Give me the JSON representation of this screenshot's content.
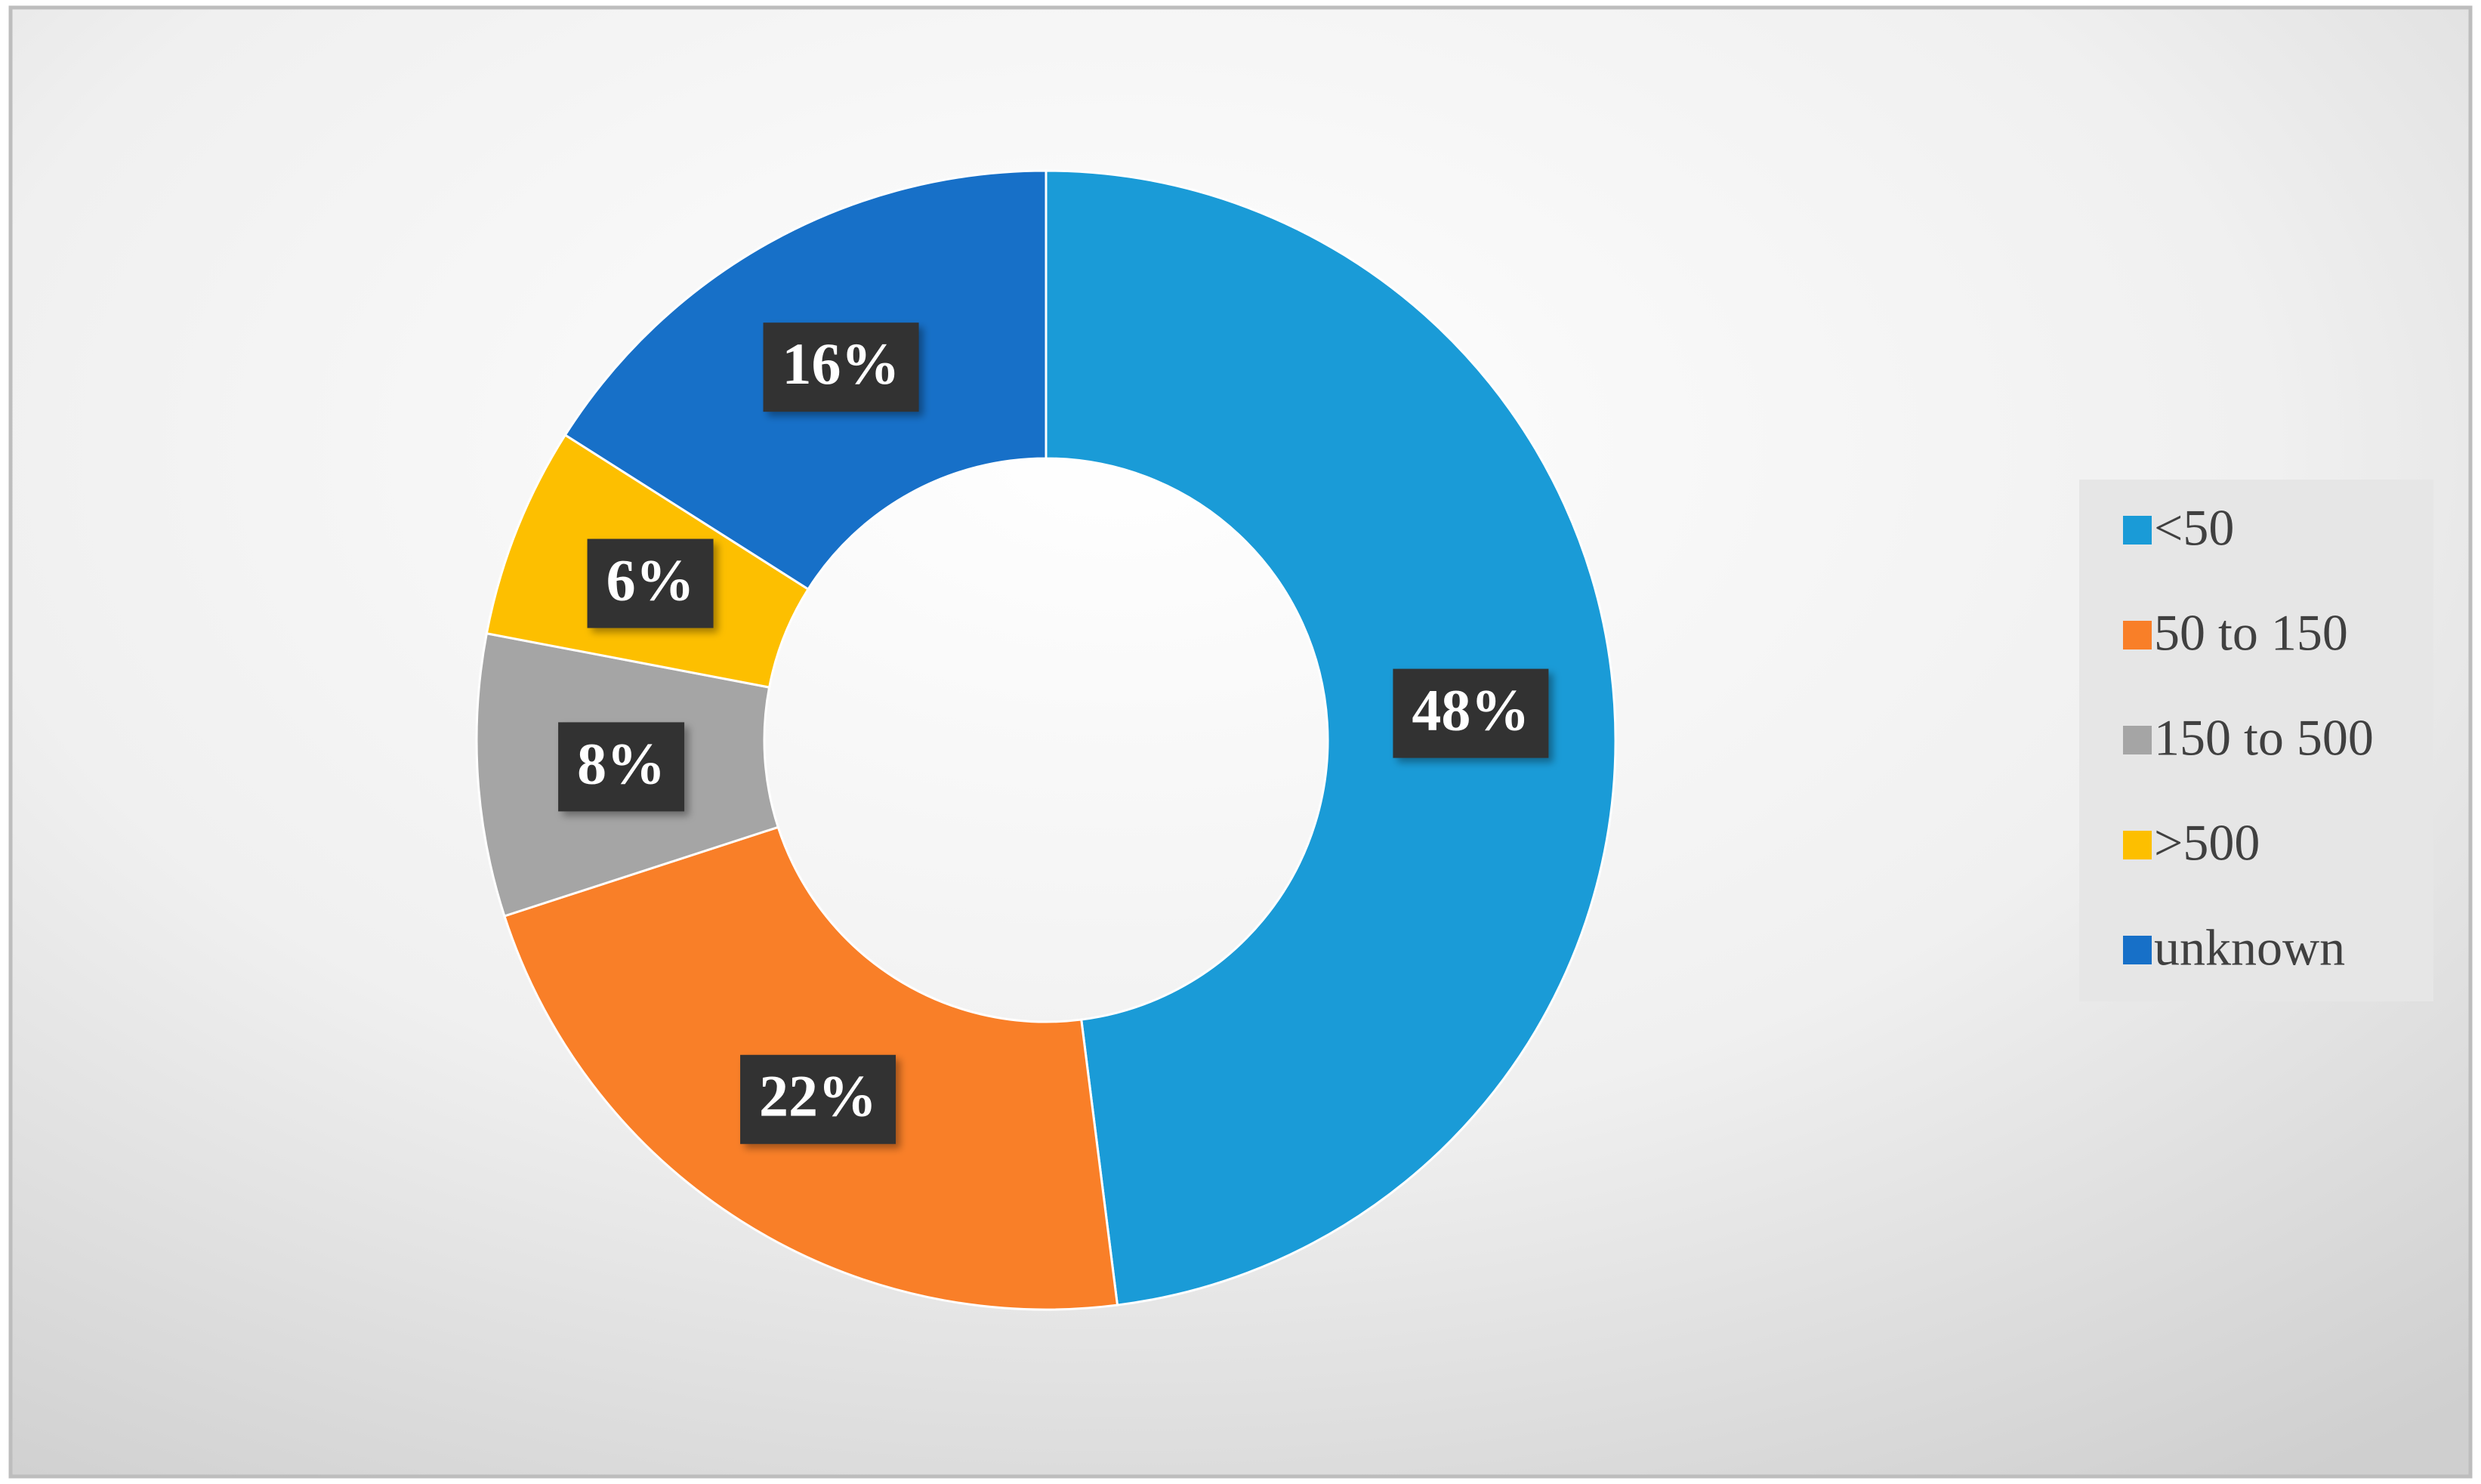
{
  "chart_data": {
    "type": "donut",
    "categories": [
      "<50",
      "50 to 150",
      "150 to 500",
      ">500",
      "unknown"
    ],
    "values": [
      48,
      22,
      8,
      6,
      16
    ],
    "value_labels": [
      "48%",
      "22%",
      "8%",
      "6%",
      "16%"
    ],
    "colors": [
      "#1a9bd7",
      "#f97f28",
      "#a5a5a5",
      "#fdbf00",
      "#1770c8"
    ],
    "legend": "right"
  }
}
